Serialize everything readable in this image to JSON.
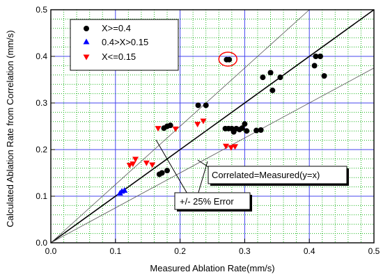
{
  "chart_data": {
    "type": "scatter",
    "xlabel": "Measured Ablation Rate(mm/s)",
    "ylabel": "Calculated Ablation Rate from Correlation (mm/s)",
    "xlim": [
      0.0,
      0.5
    ],
    "ylim": [
      0.0,
      0.5
    ],
    "x_ticks": [
      "0.0",
      "0.1",
      "0.2",
      "0.3",
      "0.4",
      "0.5"
    ],
    "y_ticks": [
      "0.0",
      "0.1",
      "0.2",
      "0.3",
      "0.4",
      "0.5"
    ],
    "minor_grid": true,
    "grid_color": "#19b319",
    "major_grid_color": "#4444ee",
    "legend_position": "top-left",
    "series": [
      {
        "name": "X>=0.4",
        "marker": "circle",
        "color": "#000000",
        "points": [
          [
            0.168,
            0.147
          ],
          [
            0.172,
            0.15
          ],
          [
            0.18,
            0.155
          ],
          [
            0.175,
            0.246
          ],
          [
            0.18,
            0.25
          ],
          [
            0.185,
            0.252
          ],
          [
            0.228,
            0.295
          ],
          [
            0.24,
            0.295
          ],
          [
            0.27,
            0.245
          ],
          [
            0.275,
            0.245
          ],
          [
            0.28,
            0.245
          ],
          [
            0.283,
            0.238
          ],
          [
            0.287,
            0.245
          ],
          [
            0.292,
            0.243
          ],
          [
            0.296,
            0.246
          ],
          [
            0.3,
            0.255
          ],
          [
            0.303,
            0.24
          ],
          [
            0.318,
            0.241
          ],
          [
            0.325,
            0.242
          ],
          [
            0.272,
            0.393
          ],
          [
            0.276,
            0.393
          ],
          [
            0.328,
            0.355
          ],
          [
            0.34,
            0.365
          ],
          [
            0.343,
            0.327
          ],
          [
            0.355,
            0.355
          ],
          [
            0.408,
            0.38
          ],
          [
            0.41,
            0.4
          ],
          [
            0.417,
            0.4
          ],
          [
            0.423,
            0.358
          ]
        ]
      },
      {
        "name": "0.4>X>0.15",
        "marker": "triangle-up",
        "color": "#0000ff",
        "points": [
          [
            0.107,
            0.106
          ],
          [
            0.11,
            0.11
          ],
          [
            0.114,
            0.112
          ]
        ]
      },
      {
        "name": "X<=0.15",
        "marker": "triangle-down",
        "color": "#ff0000",
        "points": [
          [
            0.122,
            0.167
          ],
          [
            0.127,
            0.17
          ],
          [
            0.131,
            0.18
          ],
          [
            0.148,
            0.172
          ],
          [
            0.157,
            0.168
          ],
          [
            0.166,
            0.246
          ],
          [
            0.193,
            0.245
          ],
          [
            0.227,
            0.255
          ],
          [
            0.236,
            0.262
          ],
          [
            0.271,
            0.208
          ],
          [
            0.279,
            0.205
          ],
          [
            0.285,
            0.207
          ]
        ]
      }
    ],
    "reference_lines": [
      {
        "slope": 1.0,
        "style": "solid-bold"
      },
      {
        "slope": 1.25,
        "style": "thin"
      },
      {
        "slope": 0.75,
        "style": "thin"
      }
    ],
    "highlight": {
      "x": 0.274,
      "y": 0.394,
      "color": "#ff0000"
    },
    "annotations": {
      "correlated_label": "Correlated=Measured(y=x)",
      "error_label": "+/- 25% Error"
    }
  }
}
